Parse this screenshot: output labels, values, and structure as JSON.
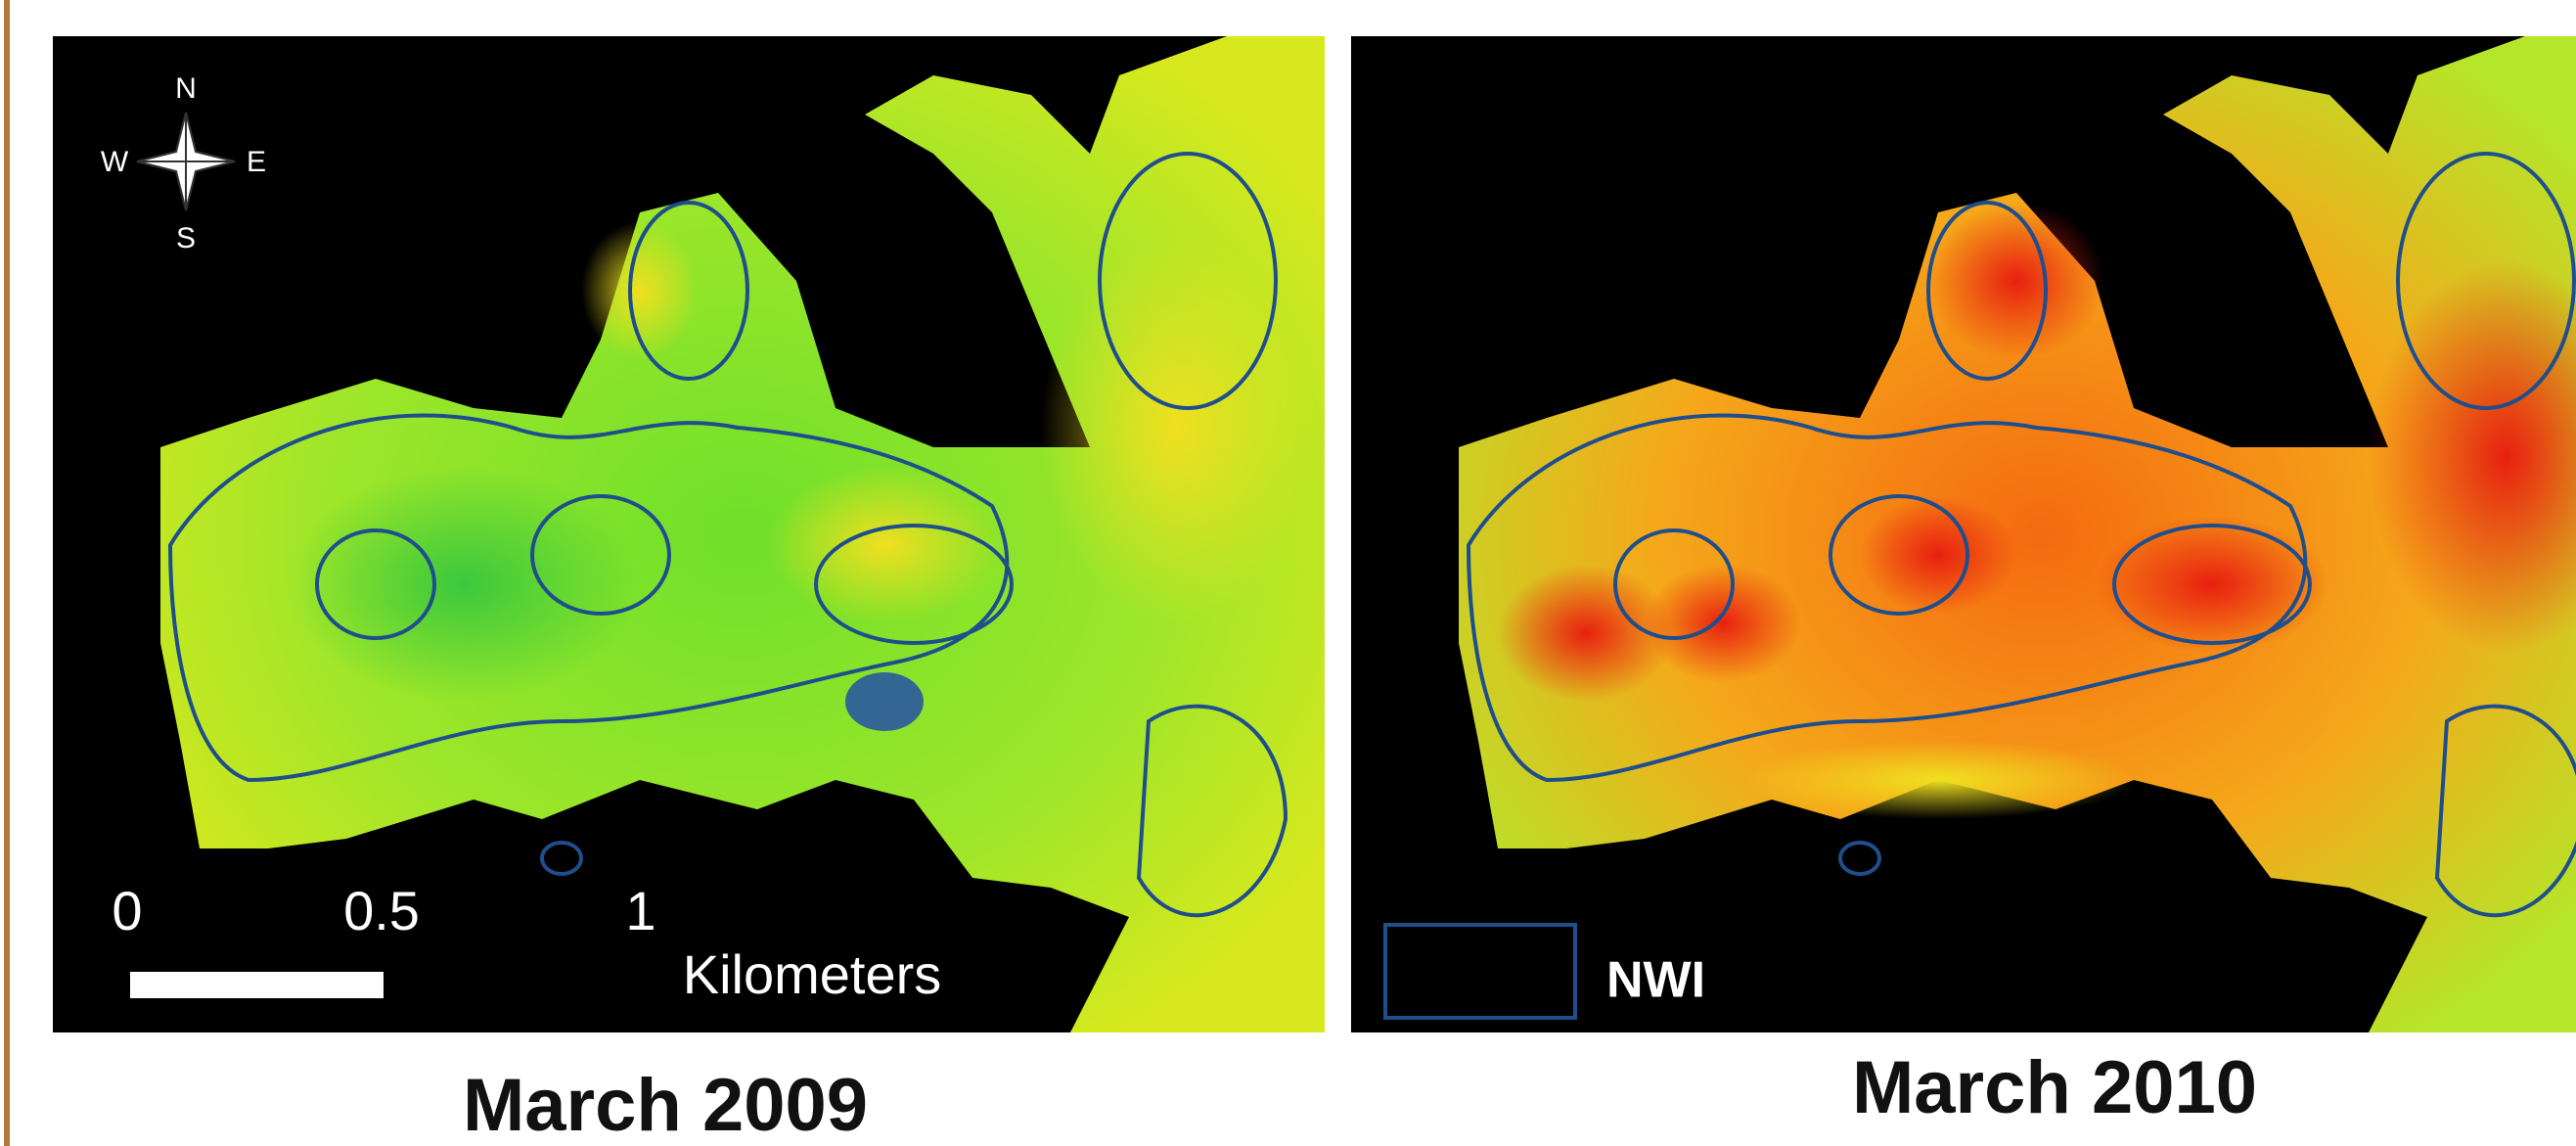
{
  "panels": [
    {
      "caption": "March 2009"
    },
    {
      "caption": "March 2010"
    }
  ],
  "compass": {
    "north": "N",
    "south": "S",
    "east": "E",
    "west": "W"
  },
  "scale_bar": {
    "labels": [
      "0",
      "0.5",
      "1"
    ],
    "unit": "Kilometers"
  },
  "legend": {
    "label": "NWI"
  }
}
